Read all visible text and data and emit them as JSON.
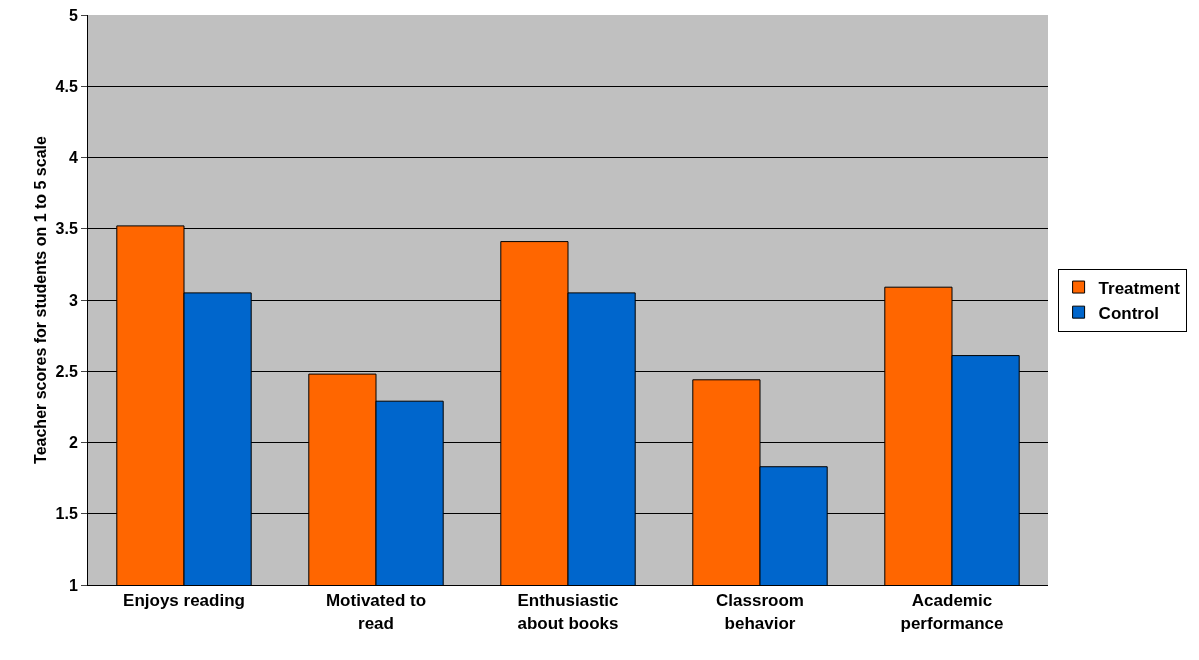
{
  "chart_data": {
    "type": "bar",
    "ylabel": "Teacher scores for students on 1 to 5 scale",
    "categories": [
      "Enjoys reading",
      "Motivated to read",
      "Enthusiastic about books",
      "Classroom behavior",
      "Academic performance"
    ],
    "series": [
      {
        "name": "Treatment",
        "color": "#ff6600",
        "values": [
          3.52,
          2.48,
          3.41,
          2.44,
          3.09
        ]
      },
      {
        "name": "Control",
        "color": "#0066cc",
        "values": [
          3.05,
          2.29,
          3.05,
          1.83,
          2.61
        ]
      }
    ],
    "ylim": [
      1,
      5
    ],
    "yticks": [
      1,
      1.5,
      2,
      2.5,
      3,
      3.5,
      4,
      4.5,
      5
    ],
    "grid": "y",
    "legend": "right"
  }
}
